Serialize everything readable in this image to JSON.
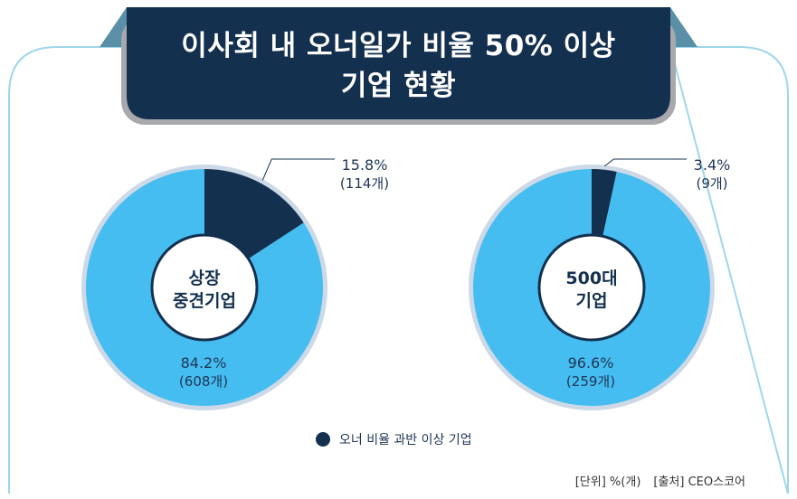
{
  "title": {
    "line1": "이사회 내 오너일가 비율 50% 이상",
    "line2": "기업 현황"
  },
  "colors": {
    "dark_navy": "#14304f",
    "light_blue": "#45bdf0",
    "ring": "#cdd9e6",
    "frame": "#9fd6ea"
  },
  "chart_data": [
    {
      "type": "pie",
      "center_label": [
        "상장",
        "중견기업"
      ],
      "slices": [
        {
          "label": "오너 비율 과반 이상 기업",
          "value": 15.8,
          "count_text": "(114개)",
          "value_text": "15.8%",
          "color": "#14304f"
        },
        {
          "label": "",
          "value": 84.2,
          "count_text": "(608개)",
          "value_text": "84.2%",
          "color": "#45bdf0"
        }
      ]
    },
    {
      "type": "pie",
      "center_label": [
        "500대",
        "기업"
      ],
      "slices": [
        {
          "label": "오너 비율 과반 이상 기업",
          "value": 3.4,
          "count_text": "(9개)",
          "value_text": "3.4%",
          "color": "#14304f"
        },
        {
          "label": "",
          "value": 96.6,
          "count_text": "(259개)",
          "value_text": "96.6%",
          "color": "#45bdf0"
        }
      ]
    }
  ],
  "legend": {
    "label": "오너 비율 과반 이상 기업"
  },
  "footnote": {
    "unit": "[단위] %(개)",
    "source": "[출처] CEO스코어"
  }
}
